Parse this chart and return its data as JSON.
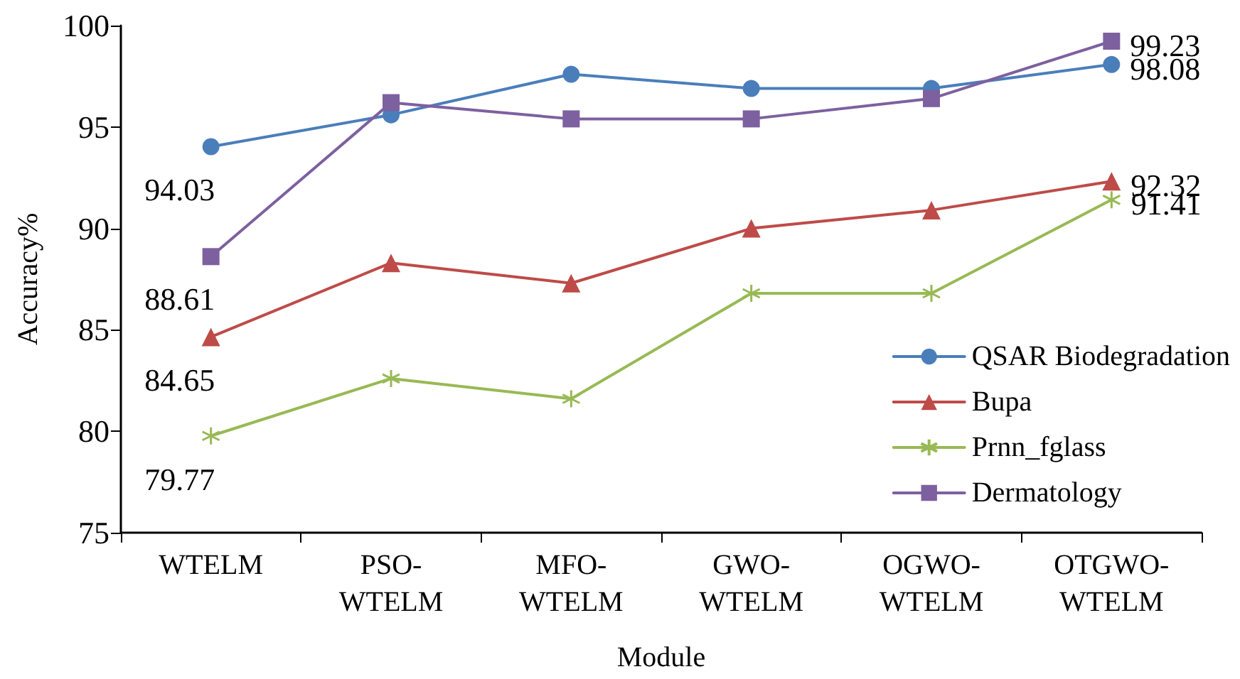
{
  "chart_data": {
    "type": "line",
    "xlabel": "Module",
    "ylabel": "Accuracy%",
    "categories": [
      "WTELM",
      "PSO-WTELM",
      "MFO-WTELM",
      "GWO-WTELM",
      "OGWO-WTELM",
      "OTGWO-WTELM"
    ],
    "series": [
      {
        "name": "QSAR Biodegradation",
        "color": "#4a7ebb",
        "marker": "circle",
        "values": [
          94.03,
          95.6,
          97.6,
          96.9,
          96.9,
          98.08
        ],
        "value_labels": [
          "94.03",
          null,
          null,
          null,
          null,
          "98.08"
        ]
      },
      {
        "name": "Bupa",
        "color": "#be4b48",
        "marker": "triangle",
        "values": [
          84.65,
          88.3,
          87.3,
          90.0,
          90.9,
          92.32
        ],
        "value_labels": [
          "84.65",
          null,
          null,
          null,
          null,
          "92.32"
        ]
      },
      {
        "name": "Prnn_fglass",
        "color": "#98b954",
        "marker": "cross",
        "values": [
          79.77,
          82.6,
          81.6,
          86.8,
          86.8,
          91.41
        ],
        "value_labels": [
          "79.77",
          null,
          null,
          null,
          null,
          "91.41"
        ]
      },
      {
        "name": "Dermatology",
        "color": "#7d60a0",
        "marker": "square",
        "values": [
          88.61,
          96.2,
          95.4,
          95.4,
          96.4,
          99.23
        ],
        "value_labels": [
          "88.61",
          null,
          null,
          null,
          null,
          "99.23"
        ]
      }
    ],
    "ylim": [
      75,
      100
    ],
    "yticks": [
      75,
      80,
      85,
      90,
      95,
      100
    ],
    "grid": false,
    "legend": "bottom right",
    "line_style": "solid"
  }
}
